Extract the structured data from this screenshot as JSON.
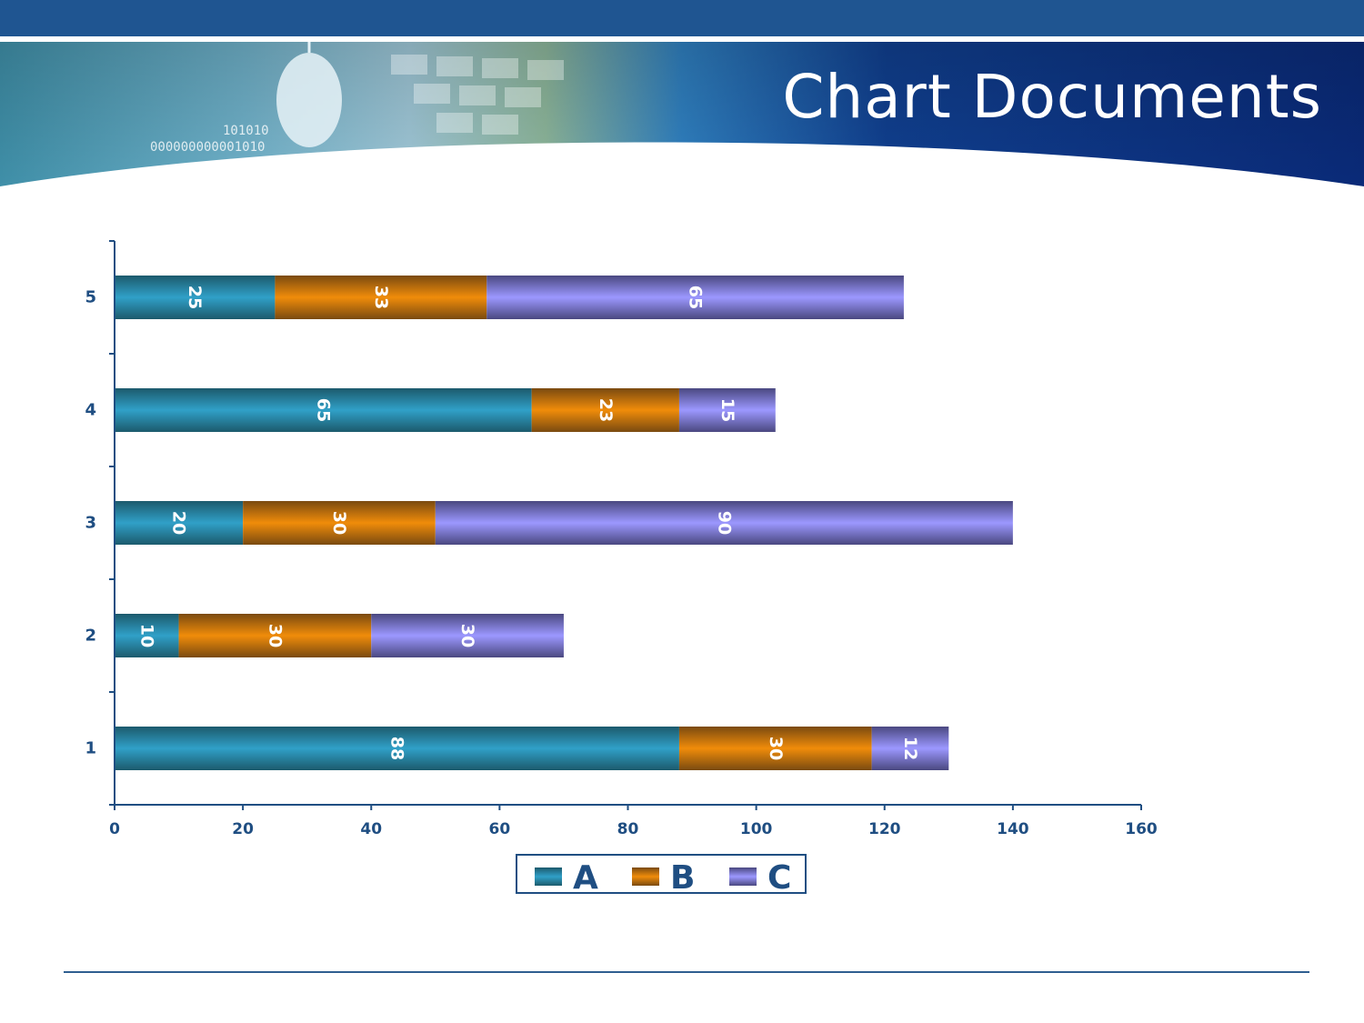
{
  "slide": {
    "title": "Chart Documents",
    "colors": {
      "header_blue": "#0d2f7a",
      "top_band": "#1f5591",
      "axis": "#1f4e82"
    },
    "decor": {
      "binary_line_1": "101010",
      "binary_line_2": "000000000001010"
    }
  },
  "chart_data": {
    "type": "bar",
    "orientation": "horizontal",
    "stacked": true,
    "categories": [
      "1",
      "2",
      "3",
      "4",
      "5"
    ],
    "series": [
      {
        "name": "A",
        "values": [
          88,
          10,
          20,
          65,
          25
        ],
        "labels": [
          "88",
          "10",
          "20",
          "65",
          "25"
        ],
        "color": "#2a92b8"
      },
      {
        "name": "B",
        "values": [
          30,
          30,
          30,
          23,
          33
        ],
        "labels": [
          "30",
          "30",
          "30",
          "23",
          "33"
        ],
        "color": "#e8860a"
      },
      {
        "name": "C",
        "values": [
          12,
          30,
          90,
          15,
          65
        ],
        "labels": [
          "12",
          "30",
          "90",
          "15",
          "65"
        ],
        "color": "#9a96ff"
      }
    ],
    "xlim": [
      0,
      160
    ],
    "xticks": [
      "0",
      "20",
      "40",
      "60",
      "80",
      "100",
      "120",
      "140",
      "160"
    ],
    "legend_position": "bottom",
    "grid": false,
    "data_labels_rotated": true
  }
}
